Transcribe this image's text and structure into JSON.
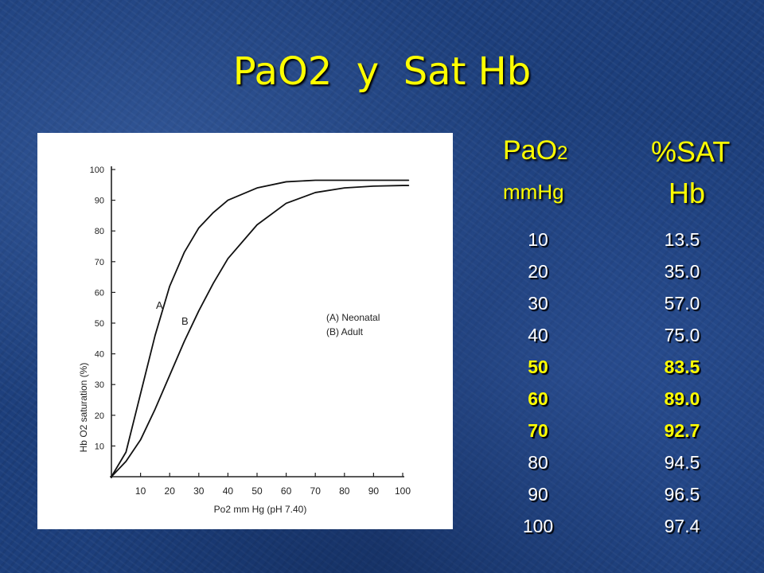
{
  "slide": {
    "title": "PaO2  y  Sat Hb"
  },
  "table": {
    "pao2_header": {
      "main": "PaO",
      "sub": "2",
      "unit": "mmHg"
    },
    "sat_header": {
      "line1": "%SAT",
      "line2": "Hb"
    },
    "rows": [
      {
        "pao2": "10",
        "sat": "13.5",
        "highlight": false
      },
      {
        "pao2": "20",
        "sat": "35.0",
        "highlight": false
      },
      {
        "pao2": "30",
        "sat": "57.0",
        "highlight": false
      },
      {
        "pao2": "40",
        "sat": "75.0",
        "highlight": false
      },
      {
        "pao2": "50",
        "sat": "83.5",
        "highlight": true
      },
      {
        "pao2": "60",
        "sat": "89.0",
        "highlight": true
      },
      {
        "pao2": "70",
        "sat": "92.7",
        "highlight": true
      },
      {
        "pao2": "80",
        "sat": "94.5",
        "highlight": false
      },
      {
        "pao2": "90",
        "sat": "96.5",
        "highlight": false
      },
      {
        "pao2": "100",
        "sat": "97.4",
        "highlight": false
      }
    ],
    "colors": {
      "header": "#ffff00",
      "value": "#ffffff",
      "highlight": "#ffff00"
    }
  },
  "chart_data": {
    "type": "line",
    "xlabel": "Po2 mm Hg (pH 7.40)",
    "ylabel": "Hb O2 saturation (%)",
    "xlim": [
      0,
      100
    ],
    "ylim": [
      0,
      100
    ],
    "x_ticks": [
      10,
      20,
      30,
      40,
      50,
      60,
      70,
      80,
      90,
      100
    ],
    "y_ticks": [
      10,
      20,
      30,
      40,
      50,
      60,
      70,
      80,
      90,
      100
    ],
    "legend": [
      "(A) Neonatal",
      "(B) Adult"
    ],
    "curve_labels": [
      "A",
      "B"
    ],
    "series": [
      {
        "name": "A",
        "x": [
          0,
          5,
          10,
          15,
          20,
          25,
          30,
          35,
          40,
          50,
          60,
          70,
          80,
          90,
          100,
          102
        ],
        "y": [
          0,
          8,
          27,
          46,
          62,
          73,
          81,
          86,
          90,
          94,
          96,
          96.5,
          96.5,
          96.5,
          96.5,
          96.5
        ]
      },
      {
        "name": "B",
        "x": [
          0,
          5,
          10,
          15,
          20,
          25,
          30,
          35,
          40,
          50,
          60,
          70,
          80,
          90,
          100,
          102
        ],
        "y": [
          0,
          5,
          12,
          22,
          33,
          44,
          54,
          63,
          71,
          82,
          89,
          92.5,
          94,
          94.6,
          94.8,
          94.8
        ]
      }
    ]
  }
}
